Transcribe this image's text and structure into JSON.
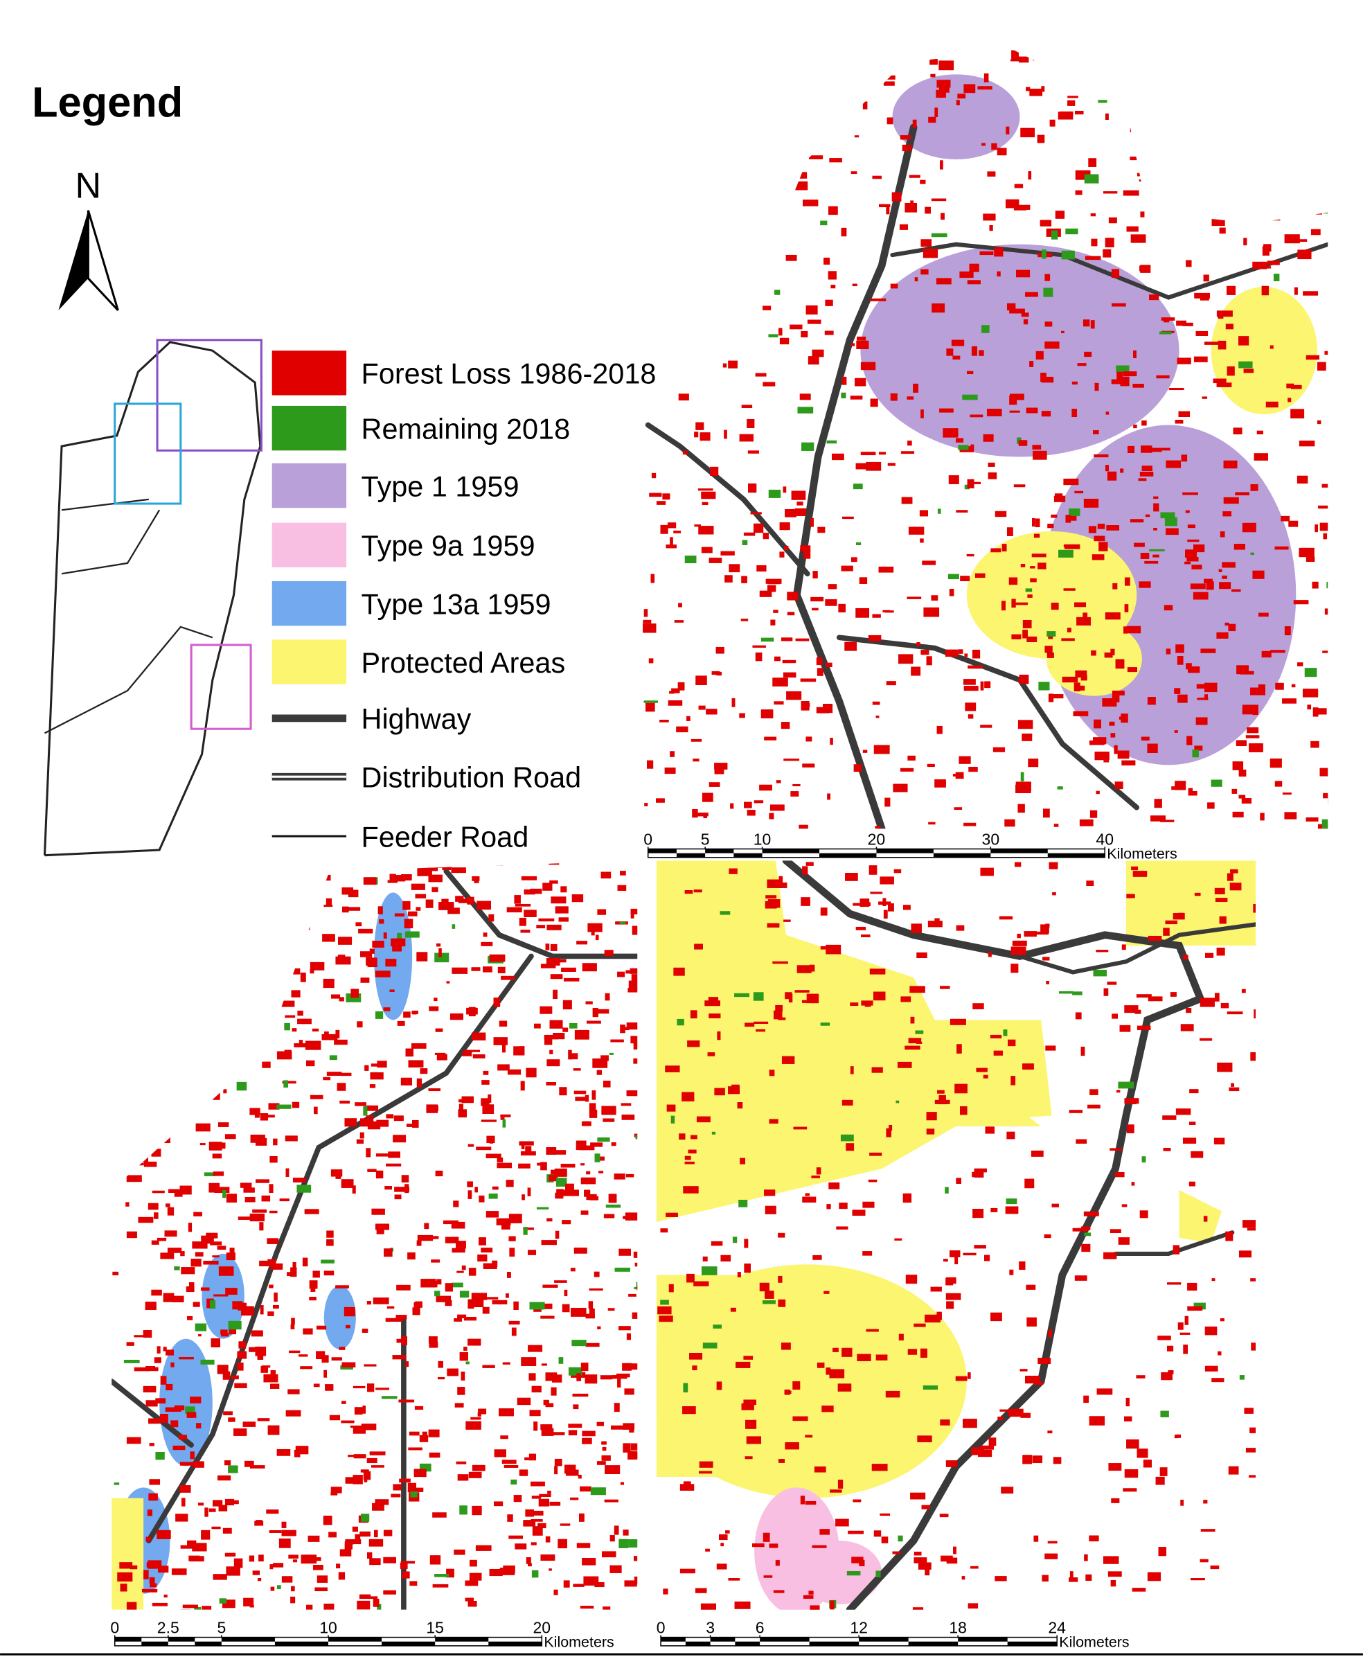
{
  "legend": {
    "title": "Legend",
    "north": "N",
    "items": [
      {
        "label": "Forest Loss 1986-2018",
        "kind": "swatch",
        "color": "#e00000"
      },
      {
        "label": "Remaining 2018",
        "kind": "swatch",
        "color": "#2e9a1c"
      },
      {
        "label": "Type 1 1959",
        "kind": "swatch",
        "color": "#b9a0d8"
      },
      {
        "label": "Type 9a 1959",
        "kind": "swatch",
        "color": "#f9bfe3"
      },
      {
        "label": "Type 13a 1959",
        "kind": "swatch",
        "color": "#72a9ef"
      },
      {
        "label": "Protected Areas",
        "kind": "swatch",
        "color": "#fbf570"
      },
      {
        "label": "Highway",
        "kind": "highway",
        "color": "#3a3a3a"
      },
      {
        "label": "Distribution Road",
        "kind": "distribution",
        "color": "#3a3a3a"
      },
      {
        "label": "Feeder Road",
        "kind": "feeder",
        "color": "#111111"
      }
    ]
  },
  "maps": [
    {
      "scale": {
        "ticks": [
          0,
          5,
          10,
          20,
          30,
          40
        ],
        "unit": "Kilometers"
      }
    },
    {
      "scale": {
        "ticks": [
          0,
          2.5,
          5,
          10,
          15,
          20
        ],
        "unit": "Kilometers"
      }
    },
    {
      "scale": {
        "ticks": [
          0,
          3,
          6,
          12,
          18,
          24
        ],
        "unit": "Kilometers"
      }
    }
  ]
}
